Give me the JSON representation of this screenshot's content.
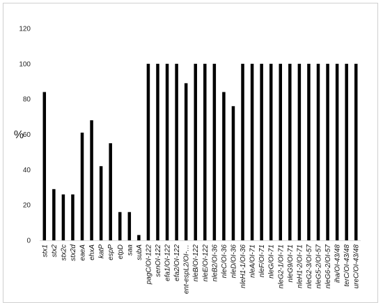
{
  "chart_data": {
    "type": "bar",
    "title": "",
    "xlabel": "",
    "ylabel": "%",
    "ylim": [
      0,
      120
    ],
    "yticks": [
      0,
      20,
      40,
      60,
      80,
      100,
      120
    ],
    "grid": false,
    "legend": "none",
    "bar_color": "#000000",
    "categories": [
      "stx1",
      "stx2",
      "stx2c",
      "stx2d",
      "eaeA",
      "ehxA",
      "katP",
      "espP",
      "etpD",
      "saa",
      "subA",
      "pagC/OI-122",
      "senOI-122",
      "efa1/OI-122",
      "efa2/OI-122",
      "ent-espL2/OI-…",
      "nleB/OI-122",
      "nleE/OI-122",
      "nleB2/OI-36",
      "nleC/OI-36",
      "nleD/OI-36",
      "nleH1-1/OI-36",
      "nleA/OI-71",
      "nleF/OI-71",
      "nleG/OI-71",
      "nleG2-1/OI-71",
      "nleG9/OI-71",
      "nleH1-2/OI-71",
      "nleG2-3/OI-57",
      "nleG5-2/OI-57",
      "nleG6-2/OI-57",
      "iha/OI-43/48",
      "terC/OI-43/48",
      "ureC/OI-43/48"
    ],
    "values": [
      84,
      29,
      26,
      26,
      61,
      68,
      42,
      55,
      16,
      16,
      3,
      100,
      100,
      100,
      100,
      89,
      100,
      100,
      100,
      84,
      76,
      100,
      100,
      100,
      100,
      100,
      100,
      100,
      100,
      100,
      100,
      100,
      100,
      100
    ]
  }
}
